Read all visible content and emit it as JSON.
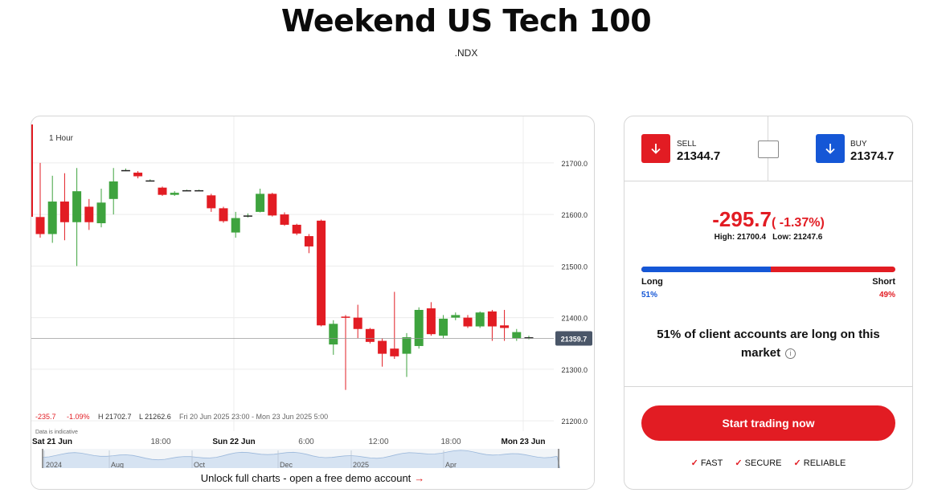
{
  "page": {
    "title": "Weekend US Tech 100",
    "ticker": ".NDX"
  },
  "chart": {
    "timeframe": "1 Hour",
    "current_price_tag": "21359.7",
    "stats": {
      "change": "-235.7",
      "change_pct": "-1.09%",
      "high": "H 21702.7",
      "low": "L 21262.6",
      "range": "Fri 20 Jun 2025 23:00 - Mon 23 Jun 2025 5:00"
    },
    "indicative_note": "Data is indicative",
    "time_labels": [
      "Sat 21 Jun",
      "18:00",
      "Sun 22 Jun",
      "6:00",
      "12:00",
      "18:00",
      "Mon 23 Jun"
    ],
    "navigator_labels": [
      "2024",
      "Aug",
      "Oct",
      "Dec",
      "2025",
      "Apr"
    ],
    "unlock_text": "Unlock full charts - open a free demo account",
    "unlock_arrow": "→",
    "colors": {
      "up": "#3ea33e",
      "down": "#e21c23",
      "price_tag": "#4a5668"
    }
  },
  "chart_data": {
    "type": "candlestick",
    "yticks": [
      21700.0,
      21600.0,
      21500.0,
      21400.0,
      21300.0,
      21200.0
    ],
    "ytick_labels": [
      "21700.0",
      "21600.0",
      "21500.0",
      "21400.0",
      "21300.0",
      "21200.0"
    ],
    "ylim": [
      21180,
      21790
    ],
    "current_price": 21359.7,
    "candles": [
      [
        21595,
        21562,
        21700,
        21555
      ],
      [
        21562,
        21625,
        21675,
        21545
      ],
      [
        21625,
        21585,
        21680,
        21550
      ],
      [
        21585,
        21645,
        21690,
        21500
      ],
      [
        21615,
        21585,
        21630,
        21570
      ],
      [
        21583,
        21623,
        21650,
        21575
      ],
      [
        21630,
        21664,
        21690,
        21600
      ],
      [
        21686,
        21686,
        21689,
        21684
      ],
      [
        21681,
        21674,
        21684,
        21670
      ],
      [
        21666,
        21666,
        21668,
        21665
      ],
      [
        21652,
        21638,
        21654,
        21636
      ],
      [
        21638,
        21642,
        21645,
        21636
      ],
      [
        21647,
        21647,
        21648,
        21646
      ],
      [
        21647,
        21647,
        21648,
        21646
      ],
      [
        21637,
        21612,
        21640,
        21605
      ],
      [
        21612,
        21587,
        21615,
        21584
      ],
      [
        21565,
        21593,
        21605,
        21555
      ],
      [
        21598,
        21598,
        21602,
        21594
      ],
      [
        21605,
        21640,
        21650,
        21604
      ],
      [
        21640,
        21598,
        21642,
        21596
      ],
      [
        21600,
        21580,
        21604,
        21578
      ],
      [
        21580,
        21563,
        21582,
        21560
      ],
      [
        21558,
        21538,
        21562,
        21525
      ],
      [
        21588,
        21385,
        21590,
        21383
      ],
      [
        21348,
        21388,
        21395,
        21328
      ],
      [
        21402,
        21400,
        21405,
        21260
      ],
      [
        21400,
        21378,
        21425,
        21360
      ],
      [
        21378,
        21353,
        21380,
        21350
      ],
      [
        21355,
        21330,
        21360,
        21305
      ],
      [
        21340,
        21325,
        21450,
        21320
      ],
      [
        21330,
        21362,
        21370,
        21285
      ],
      [
        21345,
        21415,
        21420,
        21340
      ],
      [
        21418,
        21368,
        21430,
        21365
      ],
      [
        21365,
        21398,
        21405,
        21360
      ],
      [
        21400,
        21405,
        21410,
        21395
      ],
      [
        21400,
        21383,
        21405,
        21380
      ],
      [
        21383,
        21410,
        21412,
        21380
      ],
      [
        21412,
        21383,
        21415,
        21355
      ],
      [
        21385,
        21380,
        21415,
        21355
      ],
      [
        21360,
        21372,
        21378,
        21355
      ],
      [
        21362,
        21362,
        21365,
        21358
      ]
    ]
  },
  "trade": {
    "sell_label": "SELL",
    "sell_price": "21344.7",
    "buy_label": "BUY",
    "buy_price": "21374.7",
    "change_value": "-295.7",
    "change_pct": "( -1.37%)",
    "high": "High: 21700.4",
    "low": "Low: 21247.6",
    "long_label": "Long",
    "short_label": "Short",
    "long_pct": "51%",
    "short_pct": "49%",
    "long_fraction": 0.51,
    "statement_line1": "51% of client accounts are long on this",
    "statement_line2": "market",
    "info_icon": "ⓘ",
    "cta_label": "Start trading now",
    "features": [
      "FAST",
      "SECURE",
      "RELIABLE"
    ],
    "check_glyph": "✓",
    "colors": {
      "sell": "#e21c23",
      "buy": "#1557d6",
      "long": "#1557d6",
      "short": "#e21c23"
    }
  }
}
